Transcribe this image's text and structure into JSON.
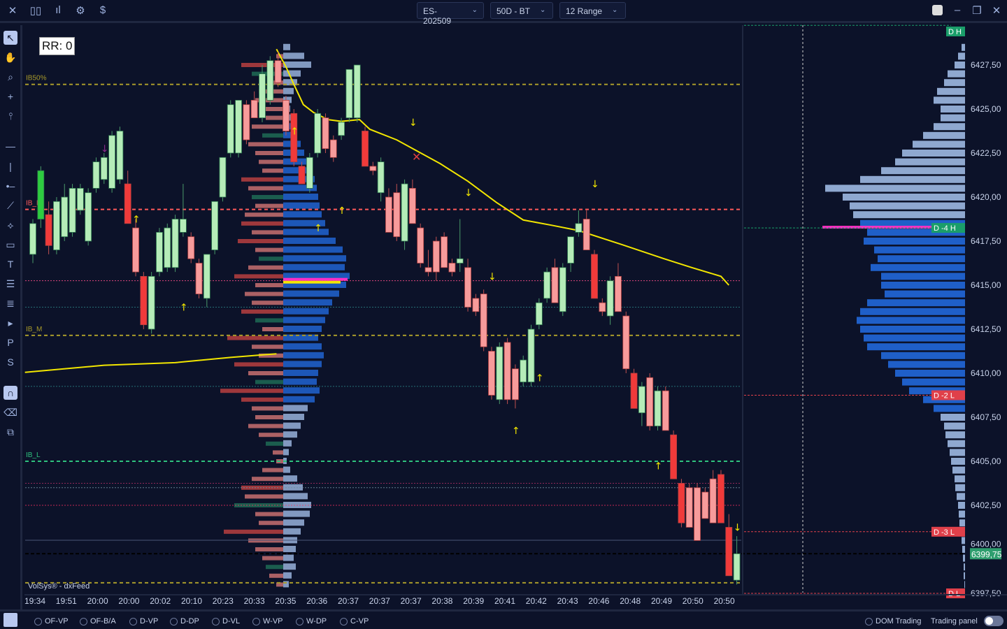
{
  "toolbar": {
    "icons": [
      "close-icon",
      "candles-icon",
      "bars-icon",
      "gear-icon",
      "dollar-icon"
    ],
    "symbol": "ES-202509",
    "period": "50D - BT",
    "bar_type": "12 Range"
  },
  "window": {
    "icons": [
      "transparency-icon",
      "minimize-icon",
      "restore-icon",
      "close-icon"
    ]
  },
  "rr_label": "RR: 0",
  "watermark": "VolSys® - dxFeed",
  "colors": {
    "bg": "#0c1229",
    "up": "#b5ecb8",
    "up_strong": "#2ecc40",
    "down": "#f79b9b",
    "down_strong": "#f03a3a",
    "vwap": "#f2e600",
    "profile_va": "#1f5fc8",
    "profile": "#8fa8d0",
    "last": "#2e9e6e"
  },
  "price_axis": [
    "6427,50",
    "6425,00",
    "6422,50",
    "6420,00",
    "6417,50",
    "6415,00",
    "6412,50",
    "6410,00",
    "6407,50",
    "6405,00",
    "6402,50",
    "6400,00",
    "6397,50"
  ],
  "last_price": "6399,75",
  "time_axis": [
    "19:34",
    "19:51",
    "20:00",
    "20:00",
    "20:02",
    "20:10",
    "20:23",
    "20:33",
    "20:35",
    "20:36",
    "20:37",
    "20:37",
    "20:37",
    "20:38",
    "20:39",
    "20:41",
    "20:42",
    "20:43",
    "20:46",
    "20:48",
    "20:49",
    "20:50",
    "20:50"
  ],
  "levels": [
    {
      "label": "IB50%",
      "price": 6426.4,
      "color": "#a89a2a",
      "style": "dash"
    },
    {
      "label": "IB_H",
      "price": 6419.3,
      "color": "#ff5a5a",
      "style": "dash"
    },
    {
      "label": "IB_M",
      "price": 6412.15,
      "color": "#a89a2a",
      "style": "dash"
    },
    {
      "label": "IB_L",
      "price": 6405.0,
      "color": "#2ec27e",
      "style": "dash"
    },
    {
      "label": "",
      "price": 6398.1,
      "color": "#a89a2a",
      "style": "dash"
    }
  ],
  "right_levels": [
    {
      "label": "D H",
      "price": 6429.75,
      "color": "#1a9e6a"
    },
    {
      "label": "D -4 H",
      "price": 6418.25,
      "color": "#1a9e6a"
    },
    {
      "label": "D -2 L",
      "price": 6408.75,
      "color": "#e0404a"
    },
    {
      "label": "D -3 L",
      "price": 6401.0,
      "color": "#e0404a"
    },
    {
      "label": "D L",
      "price": 6397.5,
      "color": "#e0404a"
    }
  ],
  "footer": {
    "options": [
      "OF-VP",
      "OF-B/A",
      "D-VP",
      "D-DP",
      "D-VL",
      "W-VP",
      "W-DP",
      "C-VP"
    ],
    "dom": "DOM Trading",
    "panel": "Trading panel"
  },
  "chart_data": {
    "type": "candlestick",
    "ohlc": [
      [
        6416.75,
        6418.75,
        6416.25,
        6418.5
      ],
      [
        6418.75,
        6421.75,
        6418.25,
        6421.5,
        1
      ],
      [
        6419.0,
        6419.75,
        6416.75,
        6417.25,
        1
      ],
      [
        6417.0,
        6420.0,
        6416.75,
        6419.75
      ],
      [
        6417.75,
        6420.75,
        6417.5,
        6420.0
      ],
      [
        6418.0,
        6420.75,
        6417.75,
        6420.5
      ],
      [
        6419.25,
        6420.75,
        6419.0,
        6420.5
      ],
      [
        6417.5,
        6420.5,
        6417.25,
        6420.25
      ],
      [
        6420.5,
        6422.25,
        6420.25,
        6422.0
      ],
      [
        6421.0,
        6422.5,
        6420.75,
        6422.25
      ],
      [
        6420.5,
        6423.75,
        6420.25,
        6423.5
      ],
      [
        6421.0,
        6424.0,
        6420.75,
        6423.75
      ],
      [
        6420.75,
        6421.5,
        6418.5,
        6418.5,
        1
      ],
      [
        6418.25,
        6418.75,
        6415.5,
        6415.75
      ],
      [
        6415.5,
        6415.75,
        6412.5,
        6412.75,
        1
      ],
      [
        6412.5,
        6415.75,
        6412.25,
        6415.5
      ],
      [
        6415.75,
        6418.25,
        6415.5,
        6418.0
      ],
      [
        6416.0,
        6418.5,
        6415.75,
        6418.25
      ],
      [
        6416.0,
        6419.0,
        6415.75,
        6418.75
      ],
      [
        6418.0,
        6420.75,
        6417.75,
        6418.75
      ],
      [
        6417.75,
        6418.0,
        6416.25,
        6416.5
      ],
      [
        6416.25,
        6416.5,
        6414.25,
        6414.5
      ],
      [
        6414.25,
        6416.75,
        6413.75,
        6416.75
      ],
      [
        6417.0,
        6419.75,
        6416.75,
        6419.75
      ],
      [
        6420.0,
        6422.25,
        6419.75,
        6422.25
      ],
      [
        6422.5,
        6425.5,
        6422.25,
        6425.25
      ],
      [
        6422.5,
        6425.5,
        6422.25,
        6425.5
      ],
      [
        6425.25,
        6425.5,
        6423.0,
        6423.25
      ],
      [
        6425.5,
        6426.0,
        6424.5,
        6424.5
      ],
      [
        6424.5,
        6427.5,
        6424.25,
        6427.0
      ],
      [
        6425.5,
        6428.0,
        6425.25,
        6427.75
      ],
      [
        6427.75,
        6428.25,
        6426.25,
        6426.5
      ],
      [
        6425.5,
        6425.75,
        6423.5,
        6423.75
      ],
      [
        6424.75,
        6425.0,
        6421.75,
        6422.0,
        1
      ],
      [
        6421.75,
        6422.0,
        6420.75,
        6420.75,
        1
      ],
      [
        6420.5,
        6422.5,
        6420.25,
        6422.25
      ],
      [
        6422.5,
        6425.0,
        6422.25,
        6424.75
      ],
      [
        6424.5,
        6424.75,
        6422.5,
        6422.75
      ],
      [
        6423.25,
        6423.5,
        6422.0,
        6422.25
      ],
      [
        6423.5,
        6424.5,
        6423.25,
        6424.25
      ],
      [
        6424.5,
        6427.25,
        6424.25,
        6427.25
      ],
      [
        6424.5,
        6427.5,
        6424.25,
        6427.5
      ],
      [
        6423.75,
        6424.0,
        6421.75,
        6421.75,
        1
      ],
      [
        6421.75,
        6422.0,
        6421.25,
        6421.5
      ],
      [
        6420.25,
        6422.25,
        6419.75,
        6422.0
      ],
      [
        6420.0,
        6420.5,
        6418.0,
        6418.0
      ],
      [
        6420.25,
        6420.75,
        6417.5,
        6417.75
      ],
      [
        6417.5,
        6421.0,
        6417.0,
        6420.75
      ],
      [
        6420.5,
        6421.0,
        6418.5,
        6418.5
      ],
      [
        6418.25,
        6418.5,
        6416.0,
        6416.25
      ],
      [
        6416.0,
        6417.0,
        6415.5,
        6415.75
      ],
      [
        6417.5,
        6417.75,
        6415.25,
        6415.75
      ],
      [
        6417.75,
        6418.0,
        6416.0,
        6416.0
      ],
      [
        6416.25,
        6416.5,
        6415.5,
        6415.75
      ],
      [
        6416.25,
        6418.75,
        6415.75,
        6416.5
      ],
      [
        6416.0,
        6416.5,
        6413.5,
        6413.75
      ],
      [
        6414.25,
        6414.5,
        6413.25,
        6413.5
      ],
      [
        6414.5,
        6414.75,
        6411.25,
        6411.5
      ],
      [
        6411.25,
        6411.5,
        6408.5,
        6408.75
      ],
      [
        6408.5,
        6411.75,
        6408.25,
        6411.5
      ],
      [
        6411.75,
        6412.0,
        6408.25,
        6408.5
      ],
      [
        6410.25,
        6410.5,
        6408.0,
        6408.5
      ],
      [
        6409.5,
        6411.0,
        6409.25,
        6410.75
      ],
      [
        6409.5,
        6412.75,
        6409.25,
        6412.5
      ],
      [
        6412.75,
        6414.25,
        6412.5,
        6414.0
      ],
      [
        6414.25,
        6416.0,
        6414.0,
        6415.75
      ],
      [
        6416.0,
        6416.5,
        6414.0,
        6414.0
      ],
      [
        6413.5,
        6416.25,
        6413.25,
        6416.0
      ],
      [
        6416.25,
        6417.75,
        6415.75,
        6417.75
      ],
      [
        6418.0,
        6419.25,
        6417.75,
        6418.5
      ],
      [
        6418.75,
        6419.25,
        6417.0,
        6417.0
      ],
      [
        6416.75,
        6417.0,
        6414.25,
        6414.25,
        1
      ],
      [
        6414.0,
        6414.25,
        6413.25,
        6413.5
      ],
      [
        6413.25,
        6415.5,
        6412.75,
        6415.25
      ],
      [
        6415.5,
        6416.25,
        6413.5,
        6413.5
      ],
      [
        6413.25,
        6413.5,
        6410.0,
        6410.25
      ],
      [
        6410.0,
        6410.25,
        6408.0,
        6408.0,
        1
      ],
      [
        6407.75,
        6409.5,
        6407.0,
        6409.25
      ],
      [
        6409.75,
        6410.0,
        6406.75,
        6407.0
      ],
      [
        6407.0,
        6409.25,
        6406.75,
        6409.0
      ],
      [
        6409.0,
        6409.25,
        6406.75,
        6406.75
      ],
      [
        6406.5,
        6406.75,
        6404.0,
        6404.0,
        1
      ],
      [
        6403.75,
        6404.0,
        6401.25,
        6401.5,
        1
      ],
      [
        6403.5,
        6403.75,
        6401.25,
        6401.25
      ],
      [
        6403.5,
        6403.75,
        6400.5,
        6400.5
      ],
      [
        6403.25,
        6403.5,
        6401.75,
        6401.75
      ],
      [
        6404.0,
        6404.5,
        6401.5,
        6401.5
      ],
      [
        6404.25,
        6404.5,
        6401.5,
        6401.5,
        1
      ],
      [
        6401.25,
        6402.0,
        6398.5,
        6398.5,
        1
      ],
      [
        6398.25,
        6400.75,
        6398.0,
        6399.75
      ]
    ],
    "vwap": [
      [
        30.8,
        6428.4
      ],
      [
        32,
        6427.4
      ],
      [
        33,
        6426.4
      ],
      [
        34.2,
        6425.25
      ],
      [
        35.5,
        6424.8
      ],
      [
        37.3,
        6424.4
      ],
      [
        39,
        6424.3
      ],
      [
        41.3,
        6424.4
      ],
      [
        42.6,
        6423.85
      ],
      [
        46,
        6423.25
      ],
      [
        51.5,
        6421.9
      ],
      [
        55,
        6420.9
      ],
      [
        58.6,
        6419.7
      ],
      [
        62,
        6418.7
      ],
      [
        65.6,
        6418.4
      ],
      [
        69,
        6418.1
      ],
      [
        74.5,
        6417.3
      ],
      [
        79.8,
        6416.5
      ],
      [
        83.3,
        6416.0
      ],
      [
        87,
        6415.5
      ],
      [
        88,
        6415.0
      ]
    ],
    "vwap2": [
      [
        -1,
        6410.05
      ],
      [
        9,
        6410.45
      ],
      [
        18,
        6410.6
      ],
      [
        25,
        6410.9
      ],
      [
        30.8,
        6411.1
      ]
    ],
    "arrows": [
      [
        9,
        6422.75,
        "down",
        "#8a2a8a"
      ],
      [
        13,
        6418.75,
        "up",
        "#f2e600"
      ],
      [
        19,
        6413.75,
        "up",
        "#f2e600"
      ],
      [
        33,
        6423.75,
        "up",
        "#f2e600"
      ],
      [
        36,
        6418.25,
        "up",
        "#f2e600"
      ],
      [
        39,
        6419.25,
        "up",
        "#f2e600"
      ],
      [
        48,
        6424.25,
        "down",
        "#f2e600"
      ],
      [
        55,
        6420.25,
        "down",
        "#f2e600"
      ],
      [
        58,
        6415.5,
        "down",
        "#f2e600"
      ],
      [
        61,
        6406.75,
        "up",
        "#f2e600"
      ],
      [
        64,
        6409.75,
        "up",
        "#f2e600"
      ],
      [
        71,
        6420.75,
        "down",
        "#f2e600"
      ],
      [
        79,
        6404.75,
        "up",
        "#f2e600"
      ],
      [
        89,
        6401.25,
        "down",
        "#f2e600"
      ]
    ],
    "profile_levels_top": 6428.5,
    "profile_step": 0.5,
    "session_profile_bid": [
      10,
      30,
      40,
      25,
      20,
      15,
      12,
      10,
      12,
      15,
      20,
      25,
      30,
      35,
      40,
      45,
      48,
      50,
      52,
      55,
      60,
      65,
      75,
      85,
      90,
      88,
      95,
      90,
      80,
      70,
      65,
      60,
      55,
      50,
      55,
      58,
      55,
      50,
      48,
      52,
      45,
      35,
      30,
      25,
      20,
      12,
      8,
      5,
      10,
      20,
      28,
      35,
      40,
      38,
      30,
      25,
      20,
      18,
      15,
      18,
      12,
      8
    ],
    "session_profile_ask": [
      0,
      10,
      60,
      45,
      20,
      35,
      40,
      30,
      25,
      45,
      30,
      50,
      40,
      35,
      30,
      60,
      50,
      45,
      40,
      55,
      60,
      45,
      65,
      40,
      35,
      50,
      70,
      40,
      55,
      45,
      60,
      40,
      30,
      80,
      45,
      35,
      70,
      50,
      40,
      90,
      60,
      45,
      40,
      50,
      35,
      25,
      15,
      10,
      30,
      45,
      60,
      55,
      70,
      40,
      35,
      85,
      50,
      40,
      30,
      25,
      20,
      10
    ],
    "session_value_area": [
      6408.5,
      6424.0
    ],
    "day_profile": [
      0,
      0,
      5,
      10,
      15,
      25,
      30,
      40,
      45,
      35,
      35,
      45,
      60,
      75,
      90,
      100,
      120,
      150,
      200,
      175,
      165,
      160,
      150,
      140,
      145,
      130,
      125,
      135,
      120,
      120,
      115,
      140,
      150,
      155,
      150,
      145,
      140,
      120,
      110,
      100,
      90,
      80,
      60,
      45,
      35,
      30,
      28,
      25,
      22,
      20,
      18,
      15,
      14,
      12,
      10,
      9,
      8,
      6,
      5,
      4,
      3,
      2,
      2,
      1,
      1
    ],
    "day_profile_top": 6429.5,
    "day_value_area": [
      6408.0,
      6418.5
    ],
    "poc": 6418.25
  }
}
